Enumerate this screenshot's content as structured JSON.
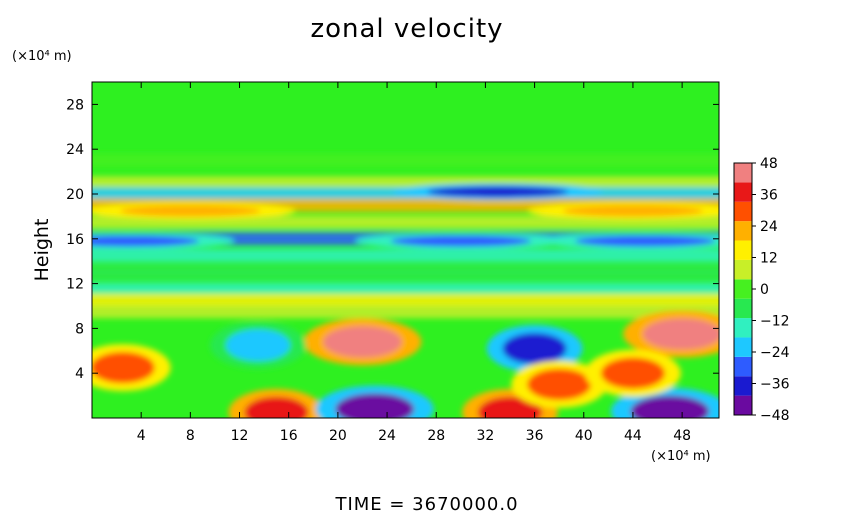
{
  "chart_data": {
    "type": "heatmap",
    "title": "zonal velocity",
    "ylabel": "Height",
    "xlabel": "",
    "x_unit": "(×10⁴ m)",
    "y_unit": "(×10⁴ m)",
    "xlim": [
      0,
      51
    ],
    "ylim": [
      0,
      30
    ],
    "x_ticks": [
      "4",
      "8",
      "12",
      "16",
      "20",
      "24",
      "28",
      "32",
      "36",
      "40",
      "44",
      "48"
    ],
    "y_ticks": [
      "4",
      "8",
      "12",
      "16",
      "20",
      "24",
      "28"
    ],
    "colorbar": {
      "min": -48,
      "max": 48,
      "tick_labels": [
        "48",
        "36",
        "24",
        "12",
        "0",
        "-12",
        "-24",
        "-36",
        "-48"
      ],
      "colors": [
        "#6a0aa0",
        "#1a1ad0",
        "#2e5cff",
        "#1ec8ff",
        "#30f0c0",
        "#28e850",
        "#46f020",
        "#c8ef28",
        "#fff000",
        "#ffb000",
        "#ff5000",
        "#e81818",
        "#f08080"
      ]
    },
    "bands": [
      {
        "height": 23,
        "value": 2
      },
      {
        "height": 21,
        "value": 5
      },
      {
        "height": 20,
        "value": -20
      },
      {
        "height": 19,
        "value": 20
      },
      {
        "height": 17.5,
        "value": 6
      },
      {
        "height": 16,
        "value": -28
      },
      {
        "height": 14.5,
        "value": -12
      },
      {
        "height": 13,
        "value": -8
      },
      {
        "height": 11.5,
        "value": -15
      },
      {
        "height": 10.5,
        "value": 12
      },
      {
        "height": 9.5,
        "value": 8
      }
    ],
    "features": [
      {
        "x": 22,
        "y": 6.8,
        "value": 44
      },
      {
        "x": 48,
        "y": 7.5,
        "value": 44
      },
      {
        "x": 36,
        "y": 6.2,
        "value": -34
      },
      {
        "x": 13.5,
        "y": 6.5,
        "value": -20
      },
      {
        "x": 2.5,
        "y": 4.5,
        "value": 30
      },
      {
        "x": 15,
        "y": 0.5,
        "value": 40
      },
      {
        "x": 23,
        "y": 0.8,
        "value": -42
      },
      {
        "x": 34,
        "y": 0.5,
        "value": 38
      },
      {
        "x": 47,
        "y": 0.6,
        "value": -46
      },
      {
        "x": 38,
        "y": 3.0,
        "value": 30
      },
      {
        "x": 44,
        "y": 4.0,
        "value": 28
      },
      {
        "x": 33,
        "y": 20.2,
        "value": -40
      },
      {
        "x": 30,
        "y": 15.8,
        "value": -30
      },
      {
        "x": 3,
        "y": 15.8,
        "value": -30
      },
      {
        "x": 45,
        "y": 15.8,
        "value": -28
      },
      {
        "x": 8,
        "y": 18.5,
        "value": 24
      },
      {
        "x": 44,
        "y": 18.5,
        "value": 22
      }
    ]
  },
  "footer": {
    "time_label": "TIME = 3670000.0"
  }
}
